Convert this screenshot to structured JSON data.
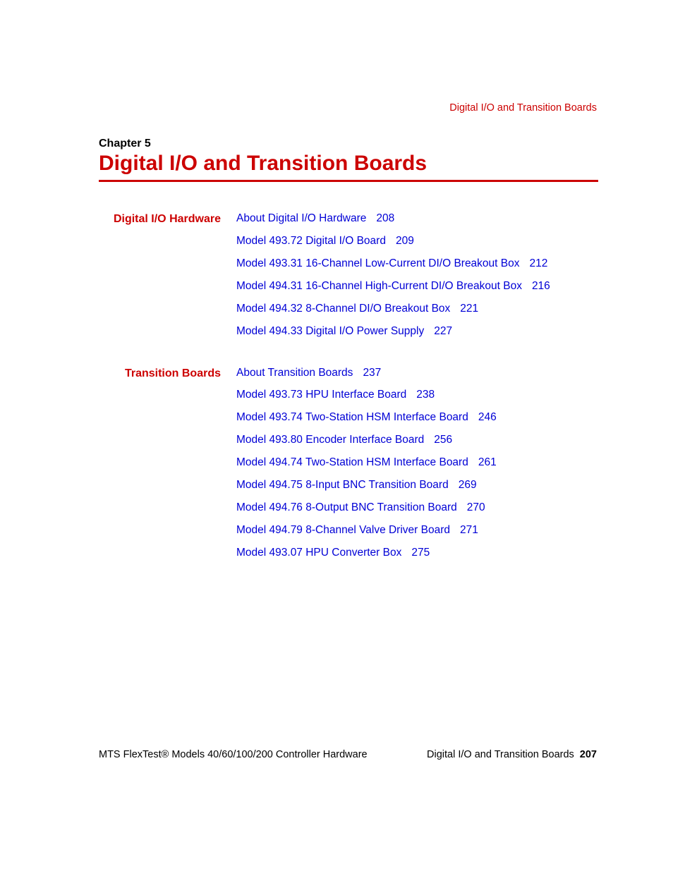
{
  "colors": {
    "accent_red": "#cc0000",
    "link_blue": "#0000d6",
    "text_black": "#000000",
    "background": "#ffffff"
  },
  "typography": {
    "body_fontsize_pt": 12,
    "title_fontsize_pt": 22,
    "section_label_fontsize_pt": 12
  },
  "running_header": "Digital I/O and Transition Boards",
  "chapter_label": "Chapter 5",
  "chapter_title": "Digital I/O and Transition Boards",
  "sections": [
    {
      "label": "Digital I/O Hardware",
      "entries": [
        {
          "text": "About Digital I/O Hardware",
          "page": "208"
        },
        {
          "text": "Model 493.72 Digital I/O Board",
          "page": "209"
        },
        {
          "text": "Model 493.31 16-Channel Low-Current DI/O Breakout Box",
          "page": "212"
        },
        {
          "text": "Model 494.31 16-Channel High-Current DI/O Breakout Box",
          "page": "216"
        },
        {
          "text": "Model 494.32 8-Channel DI/O Breakout Box",
          "page": "221"
        },
        {
          "text": "Model 494.33 Digital I/O Power Supply",
          "page": "227"
        }
      ]
    },
    {
      "label": "Transition Boards",
      "entries": [
        {
          "text": "About Transition Boards",
          "page": "237"
        },
        {
          "text": "Model 493.73 HPU Interface Board",
          "page": "238"
        },
        {
          "text": "Model 493.74 Two-Station HSM Interface Board",
          "page": "246"
        },
        {
          "text": "Model 493.80 Encoder Interface Board",
          "page": "256"
        },
        {
          "text": "Model 494.74 Two-Station HSM Interface Board",
          "page": "261"
        },
        {
          "text": "Model 494.75 8-Input BNC Transition Board",
          "page": "269"
        },
        {
          "text": "Model 494.76 8-Output BNC Transition Board",
          "page": "270"
        },
        {
          "text": "Model 494.79 8-Channel Valve Driver Board",
          "page": "271"
        },
        {
          "text": "Model 493.07 HPU Converter Box",
          "page": "275"
        }
      ]
    }
  ],
  "footer": {
    "left": "MTS FlexTest® Models 40/60/100/200 Controller Hardware",
    "right_text": "Digital I/O and Transition Boards",
    "right_page": "207"
  }
}
